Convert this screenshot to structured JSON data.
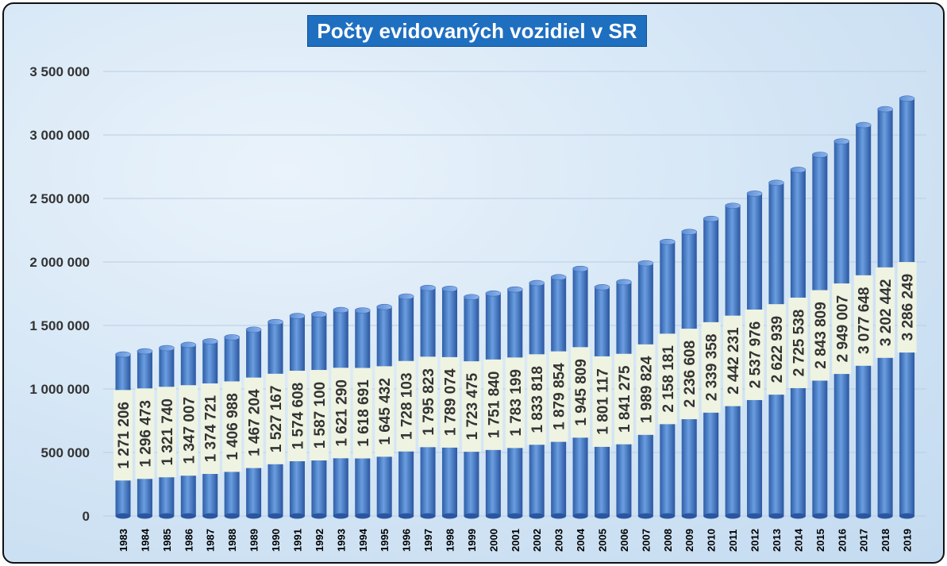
{
  "chart_data": {
    "type": "bar",
    "title": "Počty evidovaných vozidiel v SR",
    "xlabel": "",
    "ylabel": "",
    "ylim": [
      0,
      3500000
    ],
    "yticks": [
      0,
      500000,
      1000000,
      1500000,
      2000000,
      2500000,
      3000000,
      3500000
    ],
    "ytick_labels": [
      "0",
      "500 000",
      "1 000 000",
      "1 500 000",
      "2 000 000",
      "2 500 000",
      "3 000 000",
      "3 500 000"
    ],
    "grid": true,
    "legend": "none",
    "bar_color": "#4a7fcf",
    "label_background": "#eef3e2",
    "title_background": "#1f6fc0",
    "categories": [
      "1983",
      "1984",
      "1985",
      "1986",
      "1987",
      "1988",
      "1989",
      "1990",
      "1991",
      "1992",
      "1993",
      "1994",
      "1995",
      "1996",
      "1997",
      "1998",
      "1999",
      "2000",
      "2001",
      "2002",
      "2003",
      "2004",
      "2005",
      "2006",
      "2007",
      "2008",
      "2009",
      "2010",
      "2011",
      "2012",
      "2013",
      "2014",
      "2015",
      "2016",
      "2017",
      "2018",
      "2019"
    ],
    "values": [
      1271206,
      1296473,
      1321740,
      1347007,
      1374721,
      1406988,
      1467204,
      1527167,
      1574608,
      1587100,
      1621290,
      1618691,
      1645432,
      1728103,
      1795823,
      1789074,
      1723475,
      1751840,
      1783199,
      1833818,
      1879854,
      1945809,
      1801117,
      1841275,
      1989824,
      2158181,
      2236608,
      2339358,
      2442231,
      2537976,
      2622939,
      2725538,
      2843809,
      2949007,
      3077648,
      3202442,
      3286249
    ],
    "data_labels": [
      "1 271 206",
      "1 296 473",
      "1 321 740",
      "1 347 007",
      "1 374 721",
      "1 406 988",
      "1 467 204",
      "1 527 167",
      "1 574 608",
      "1 587 100",
      "1 621 290",
      "1 618 691",
      "1 645 432",
      "1 728 103",
      "1 795 823",
      "1 789 074",
      "1 723 475",
      "1 751 840",
      "1 783 199",
      "1 833 818",
      "1 879 854",
      "1 945 809",
      "1 801 117",
      "1 841 275",
      "1 989 824",
      "2 158 181",
      "2 236 608",
      "2 339 358",
      "2 442 231",
      "2 537 976",
      "2 622 939",
      "2 725 538",
      "2 843 809",
      "2 949 007",
      "3 077 648",
      "3 202 442",
      "3 286 249"
    ]
  }
}
